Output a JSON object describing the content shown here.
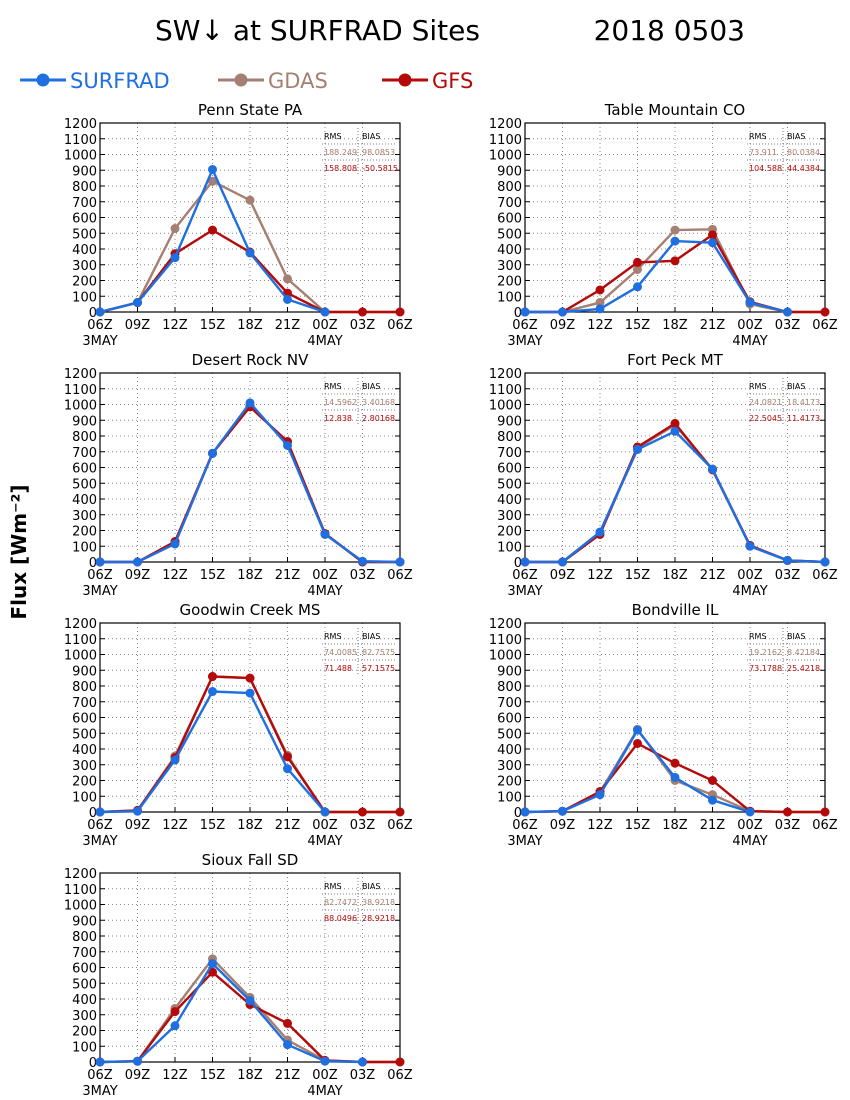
{
  "header": {
    "title": "SW↓ at SURFRAD Sites",
    "date": "2018 0503",
    "ylabel": "Flux [Wm⁻²]"
  },
  "legend": [
    {
      "name": "SURFRAD",
      "color": "#1f6fe0"
    },
    {
      "name": "GDAS",
      "color": "#a57f72"
    },
    {
      "name": "GFS",
      "color": "#b40a0a"
    }
  ],
  "colors": {
    "SURFRAD": "#1f6fe0",
    "GDAS": "#a57f72",
    "GFS": "#b40a0a"
  },
  "stats_headers": {
    "rms": "RMS",
    "bias": "BIAS"
  },
  "chart_data": [
    {
      "type": "line",
      "title": "Penn State PA",
      "categories": [
        "06Z",
        "09Z",
        "12Z",
        "15Z",
        "18Z",
        "21Z",
        "00Z",
        "03Z",
        "06Z"
      ],
      "date_labels": {
        "start": "3MAY",
        "mid": "4MAY"
      },
      "ylim": [
        0,
        1200
      ],
      "yticks": [
        0,
        100,
        200,
        300,
        400,
        500,
        600,
        700,
        800,
        900,
        1000,
        1100,
        1200
      ],
      "grid": true,
      "series": [
        {
          "name": "SURFRAD",
          "values": [
            0,
            60,
            345,
            905,
            375,
            80,
            0,
            null,
            null
          ]
        },
        {
          "name": "GDAS",
          "values": [
            0,
            60,
            530,
            830,
            710,
            210,
            0,
            0,
            0
          ]
        },
        {
          "name": "GFS",
          "values": [
            0,
            60,
            370,
            520,
            380,
            120,
            0,
            0,
            0
          ]
        }
      ],
      "stats": {
        "GDAS": {
          "rms": "188.249",
          "bias": "98.0853"
        },
        "GFS": {
          "rms": "158.808",
          "bias": "-50.5815"
        }
      }
    },
    {
      "type": "line",
      "title": "Table Mountain CO",
      "categories": [
        "06Z",
        "09Z",
        "12Z",
        "15Z",
        "18Z",
        "21Z",
        "00Z",
        "03Z",
        "06Z"
      ],
      "date_labels": {
        "start": "3MAY",
        "mid": "4MAY"
      },
      "ylim": [
        0,
        1200
      ],
      "yticks": [
        0,
        100,
        200,
        300,
        400,
        500,
        600,
        700,
        800,
        900,
        1000,
        1100,
        1200
      ],
      "grid": true,
      "series": [
        {
          "name": "SURFRAD",
          "values": [
            0,
            0,
            20,
            160,
            450,
            440,
            60,
            0,
            null
          ]
        },
        {
          "name": "GDAS",
          "values": [
            0,
            0,
            60,
            270,
            520,
            525,
            50,
            0,
            0
          ]
        },
        {
          "name": "GFS",
          "values": [
            0,
            0,
            140,
            315,
            325,
            490,
            65,
            0,
            0
          ]
        }
      ],
      "stats": {
        "GDAS": {
          "rms": "73.911",
          "bias": "80.0384"
        },
        "GFS": {
          "rms": "104.588",
          "bias": "44.4384"
        }
      }
    },
    {
      "type": "line",
      "title": "Desert Rock NV",
      "categories": [
        "06Z",
        "09Z",
        "12Z",
        "15Z",
        "18Z",
        "21Z",
        "00Z",
        "03Z",
        "06Z"
      ],
      "date_labels": {
        "start": "3MAY",
        "mid": "4MAY"
      },
      "ylim": [
        0,
        1200
      ],
      "yticks": [
        0,
        100,
        200,
        300,
        400,
        500,
        600,
        700,
        800,
        900,
        1000,
        1100,
        1200
      ],
      "grid": true,
      "series": [
        {
          "name": "SURFRAD",
          "values": [
            0,
            0,
            115,
            690,
            1010,
            740,
            175,
            5,
            0
          ]
        },
        {
          "name": "GDAS",
          "values": [
            0,
            0,
            125,
            690,
            990,
            760,
            180,
            0,
            0
          ]
        },
        {
          "name": "GFS",
          "values": [
            0,
            0,
            130,
            690,
            985,
            765,
            180,
            0,
            0
          ]
        }
      ],
      "stats": {
        "GDAS": {
          "rms": "14.5962",
          "bias": "3.40168"
        },
        "GFS": {
          "rms": "12.838",
          "bias": "2.80168"
        }
      }
    },
    {
      "type": "line",
      "title": "Fort Peck MT",
      "categories": [
        "06Z",
        "09Z",
        "12Z",
        "15Z",
        "18Z",
        "21Z",
        "00Z",
        "03Z",
        "06Z"
      ],
      "date_labels": {
        "start": "3MAY",
        "mid": "4MAY"
      },
      "ylim": [
        0,
        1200
      ],
      "yticks": [
        0,
        100,
        200,
        300,
        400,
        500,
        600,
        700,
        800,
        900,
        1000,
        1100,
        1200
      ],
      "grid": true,
      "series": [
        {
          "name": "SURFRAD",
          "values": [
            0,
            0,
            190,
            715,
            830,
            590,
            100,
            10,
            0
          ]
        },
        {
          "name": "GDAS",
          "values": [
            0,
            0,
            190,
            725,
            870,
            590,
            105,
            10,
            0
          ]
        },
        {
          "name": "GFS",
          "values": [
            0,
            0,
            175,
            730,
            880,
            585,
            105,
            10,
            0
          ]
        }
      ],
      "stats": {
        "GDAS": {
          "rms": "24.0821",
          "bias": "18.4173"
        },
        "GFS": {
          "rms": "22.5045",
          "bias": "11.4173"
        }
      }
    },
    {
      "type": "line",
      "title": "Goodwin Creek MS",
      "categories": [
        "06Z",
        "09Z",
        "12Z",
        "15Z",
        "18Z",
        "21Z",
        "00Z",
        "03Z",
        "06Z"
      ],
      "date_labels": {
        "start": "3MAY",
        "mid": "4MAY"
      },
      "ylim": [
        0,
        1200
      ],
      "yticks": [
        0,
        100,
        200,
        300,
        400,
        500,
        600,
        700,
        800,
        900,
        1000,
        1100,
        1200
      ],
      "grid": true,
      "series": [
        {
          "name": "SURFRAD",
          "values": [
            0,
            5,
            330,
            765,
            755,
            275,
            0,
            null,
            null
          ]
        },
        {
          "name": "GDAS",
          "values": [
            0,
            10,
            355,
            860,
            850,
            360,
            0,
            0,
            0
          ]
        },
        {
          "name": "GFS",
          "values": [
            0,
            10,
            345,
            860,
            850,
            350,
            0,
            0,
            0
          ]
        }
      ],
      "stats": {
        "GDAS": {
          "rms": "74.0085",
          "bias": "82.7575"
        },
        "GFS": {
          "rms": "71.488",
          "bias": "57.1575"
        }
      }
    },
    {
      "type": "line",
      "title": "Bondville IL",
      "categories": [
        "06Z",
        "09Z",
        "12Z",
        "15Z",
        "18Z",
        "21Z",
        "00Z",
        "03Z",
        "06Z"
      ],
      "date_labels": {
        "start": "3MAY",
        "mid": "4MAY"
      },
      "ylim": [
        0,
        1200
      ],
      "yticks": [
        0,
        100,
        200,
        300,
        400,
        500,
        600,
        700,
        800,
        900,
        1000,
        1100,
        1200
      ],
      "grid": true,
      "series": [
        {
          "name": "SURFRAD",
          "values": [
            0,
            5,
            110,
            520,
            220,
            75,
            0,
            null,
            null
          ]
        },
        {
          "name": "GDAS",
          "values": [
            0,
            5,
            125,
            525,
            200,
            110,
            5,
            0,
            0
          ]
        },
        {
          "name": "GFS",
          "values": [
            0,
            5,
            130,
            435,
            310,
            200,
            5,
            0,
            0
          ]
        }
      ],
      "stats": {
        "GDAS": {
          "rms": "19.2162",
          "bias": "8.42184"
        },
        "GFS": {
          "rms": "73.1788",
          "bias": "25.4218"
        }
      }
    },
    {
      "type": "line",
      "title": "Sioux Fall SD",
      "categories": [
        "06Z",
        "09Z",
        "12Z",
        "15Z",
        "18Z",
        "21Z",
        "00Z",
        "03Z",
        "06Z"
      ],
      "date_labels": {
        "start": "3MAY",
        "mid": "4MAY"
      },
      "ylim": [
        0,
        1200
      ],
      "yticks": [
        0,
        100,
        200,
        300,
        400,
        500,
        600,
        700,
        800,
        900,
        1000,
        1100,
        1200
      ],
      "grid": true,
      "series": [
        {
          "name": "SURFRAD",
          "values": [
            0,
            5,
            230,
            625,
            390,
            110,
            5,
            0,
            null
          ]
        },
        {
          "name": "GDAS",
          "values": [
            0,
            5,
            340,
            655,
            410,
            140,
            10,
            0,
            0
          ]
        },
        {
          "name": "GFS",
          "values": [
            0,
            5,
            320,
            570,
            365,
            245,
            10,
            0,
            0
          ]
        }
      ],
      "stats": {
        "GDAS": {
          "rms": "82.7472",
          "bias": "38.9218"
        },
        "GFS": {
          "rms": "88.0496",
          "bias": "28.9218"
        }
      }
    }
  ]
}
